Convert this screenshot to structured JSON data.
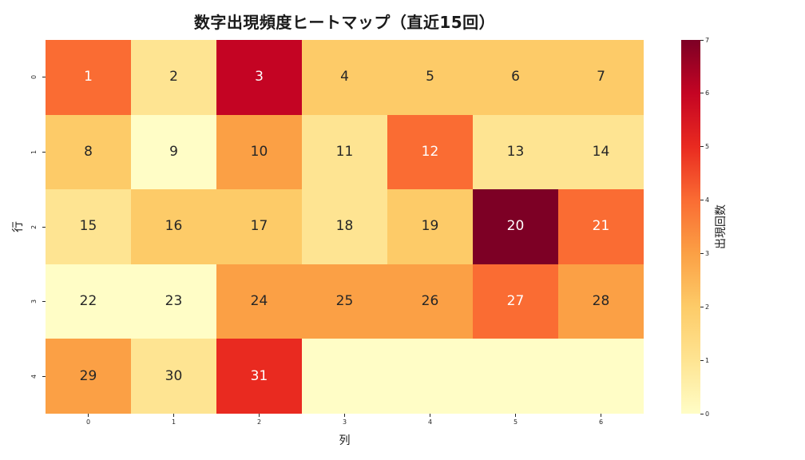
{
  "title": "数字出現頻度ヒートマップ（直近15回）",
  "chart_data": {
    "type": "heatmap",
    "title": "数字出現頻度ヒートマップ（直近15回）",
    "xlabel": "列",
    "ylabel": "行",
    "x_ticks": [
      "0",
      "1",
      "2",
      "3",
      "4",
      "5",
      "6"
    ],
    "y_ticks": [
      "0",
      "1",
      "2",
      "3",
      "4"
    ],
    "cell_labels": [
      [
        "1",
        "2",
        "3",
        "4",
        "5",
        "6",
        "7"
      ],
      [
        "8",
        "9",
        "10",
        "11",
        "12",
        "13",
        "14"
      ],
      [
        "15",
        "16",
        "17",
        "18",
        "19",
        "20",
        "21"
      ],
      [
        "22",
        "23",
        "24",
        "25",
        "26",
        "27",
        "28"
      ],
      [
        "29",
        "30",
        "31",
        "",
        "",
        "",
        ""
      ]
    ],
    "values": [
      [
        4,
        1,
        6,
        2,
        2,
        2,
        2
      ],
      [
        2,
        0,
        3,
        1,
        4,
        1,
        1
      ],
      [
        1,
        2,
        2,
        1,
        2,
        7,
        4
      ],
      [
        0,
        0,
        3,
        3,
        3,
        4,
        3
      ],
      [
        3,
        1,
        5,
        0,
        0,
        0,
        0
      ]
    ],
    "value_range": [
      0,
      7
    ],
    "value_colors": [
      "#fffdc6",
      "#fee492",
      "#fdcb68",
      "#fba045",
      "#fa6c33",
      "#e92a20",
      "#c40423",
      "#7d0025"
    ],
    "annotation_colors": {
      "dark": "#262626",
      "light": "#ffffff"
    },
    "light_text_threshold": 4,
    "colorbar": {
      "label": "出現回数",
      "min": 0,
      "max": 7,
      "ticks": [
        "0",
        "1",
        "2",
        "3",
        "4",
        "5",
        "6",
        "7"
      ]
    },
    "grid": false,
    "legend_position": "right-colorbar"
  }
}
